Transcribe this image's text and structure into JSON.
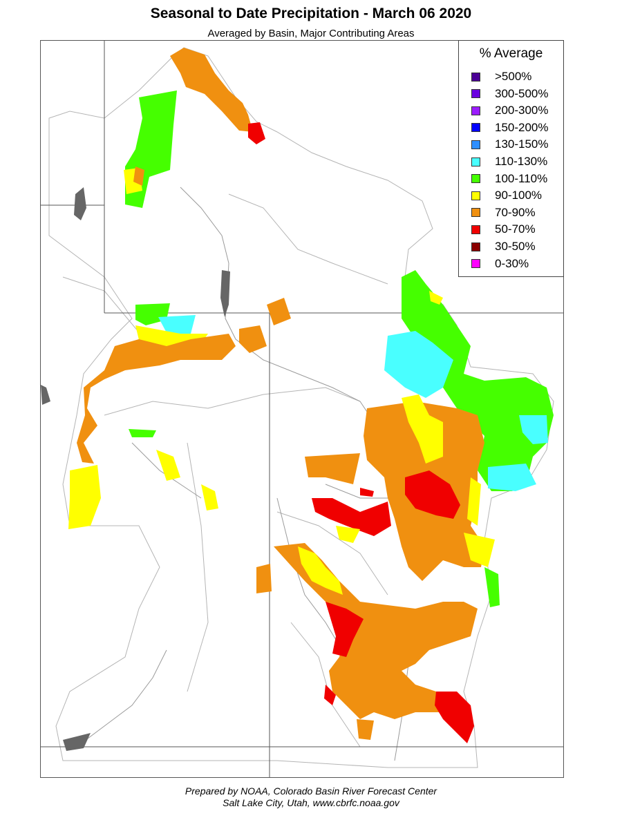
{
  "header": {
    "title": "Seasonal to Date Precipitation - March 06 2020",
    "subtitle": "Averaged by Basin, Major Contributing Areas"
  },
  "legend": {
    "title": "% Average",
    "items": [
      {
        "label": ">500%",
        "color": "#4b0096"
      },
      {
        "label": "300-500%",
        "color": "#6a00e0"
      },
      {
        "label": "200-300%",
        "color": "#9b1cff"
      },
      {
        "label": "150-200%",
        "color": "#0000ff"
      },
      {
        "label": "130-150%",
        "color": "#2f8fff"
      },
      {
        "label": "110-130%",
        "color": "#49ffff"
      },
      {
        "label": "100-110%",
        "color": "#45ff00"
      },
      {
        "label": "90-100%",
        "color": "#ffff00"
      },
      {
        "label": "70-90%",
        "color": "#f09010"
      },
      {
        "label": "50-70%",
        "color": "#f00000"
      },
      {
        "label": "30-50%",
        "color": "#8b0000"
      },
      {
        "label": "0-30%",
        "color": "#ff00ff"
      }
    ]
  },
  "footer": {
    "line1": "Prepared by NOAA, Colorado Basin River Forecast Center",
    "line2": "Salt Lake City, Utah, www.cbrfc.noaa.gov"
  },
  "map": {
    "colors": {
      "border": "#555555",
      "river": "#9a9a9a",
      "basin": "#b4b4b4",
      "lake": "#666666"
    }
  }
}
